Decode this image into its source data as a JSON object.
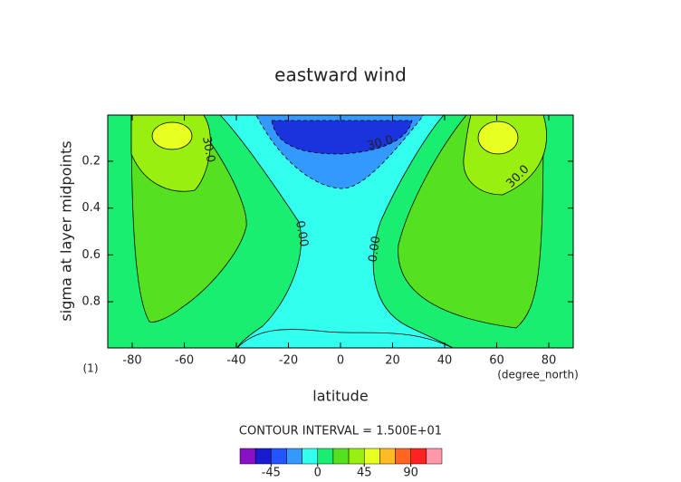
{
  "chart_data": {
    "type": "contour",
    "title": "eastward wind",
    "xlabel": "latitude",
    "ylabel": "sigma at layer midpoints",
    "xlim": [
      -89.4,
      89.4
    ],
    "ylim": [
      0.997,
      0.003
    ],
    "xticks": [
      -80,
      -60,
      -40,
      -20,
      0,
      20,
      40,
      60,
      80
    ],
    "yticks": [
      0.2,
      0.4,
      0.6,
      0.8
    ],
    "panel_label": "(1)",
    "x_units": "(degree_north)",
    "interval_note": "CONTOUR INTERVAL = 1.500E+01",
    "contour_labels": [
      "30.0",
      "0.00",
      "0.00",
      "30.0",
      "30.0"
    ],
    "colorbar": {
      "levels": [
        -75,
        -60,
        -45,
        -30,
        -15,
        0,
        15,
        30,
        45,
        60,
        75,
        90,
        105,
        120
      ],
      "colors": [
        "#8a10c8",
        "#1a1ad0",
        "#2255ff",
        "#3399ff",
        "#33ffee",
        "#1aee70",
        "#55e020",
        "#99f010",
        "#e8ff22",
        "#ffbb22",
        "#ff6622",
        "#ff2222",
        "#ff99aa"
      ],
      "ticks": [
        -45,
        0,
        45,
        90
      ]
    }
  }
}
